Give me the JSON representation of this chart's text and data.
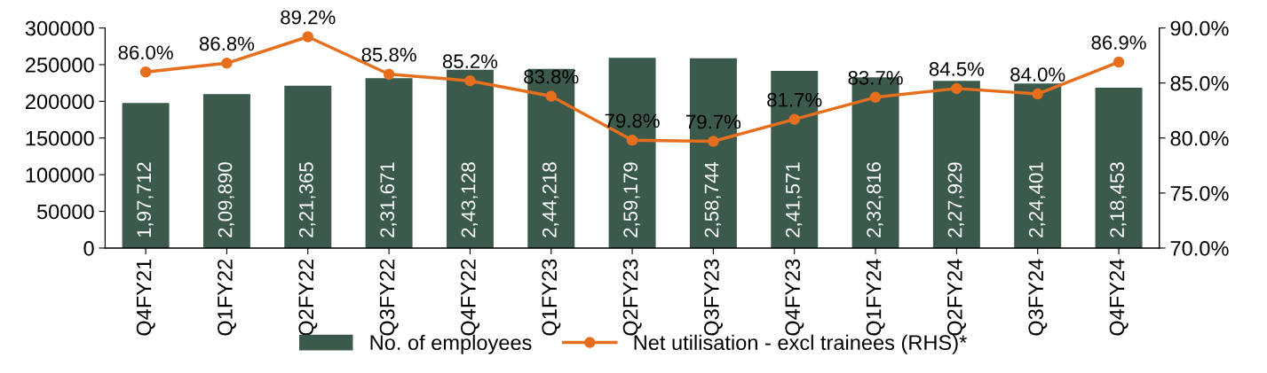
{
  "chart_data": {
    "type": "bar",
    "categories": [
      "Q4FY21",
      "Q1FY22",
      "Q2FY22",
      "Q3FY22",
      "Q4FY22",
      "Q1FY23",
      "Q2FY23",
      "Q3FY23",
      "Q4FY23",
      "Q1FY24",
      "Q2FY24",
      "Q3FY24",
      "Q4FY24"
    ],
    "series": [
      {
        "name": "No. of employees",
        "color": "#3b5a4c",
        "values": [
          197712,
          209890,
          221365,
          231671,
          243128,
          244218,
          259179,
          258744,
          241571,
          232816,
          227929,
          224401,
          218453
        ],
        "value_labels": [
          "1,97,712",
          "2,09,890",
          "2,21,365",
          "2,31,671",
          "2,43,128",
          "2,44,218",
          "2,59,179",
          "2,58,744",
          "2,41,571",
          "2,32,816",
          "2,27,929",
          "2,24,401",
          "2,18,453"
        ]
      },
      {
        "name": "Net utilisation - excl trainees (RHS)*",
        "type": "line",
        "axis": "y2",
        "color": "#e66f1e",
        "marker": "circle",
        "values": [
          86.0,
          86.8,
          89.2,
          85.8,
          85.2,
          83.8,
          79.8,
          79.7,
          81.7,
          83.7,
          84.5,
          84.0,
          86.9
        ],
        "value_labels": [
          "86.0%",
          "86.8%",
          "89.2%",
          "85.8%",
          "85.2%",
          "83.8%",
          "79.8%",
          "79.7%",
          "81.7%",
          "83.7%",
          "84.5%",
          "84.0%",
          "86.9%"
        ]
      }
    ],
    "ylim": [
      0,
      300000
    ],
    "yticks": [
      0,
      50000,
      100000,
      150000,
      200000,
      250000,
      300000
    ],
    "y2lim": [
      70,
      90
    ],
    "y2ticks": [
      {
        "value": 70,
        "label": "70.0%"
      },
      {
        "value": 75,
        "label": "75.0%"
      },
      {
        "value": 80,
        "label": "80.0%"
      },
      {
        "value": 85,
        "label": "85.0%"
      },
      {
        "value": 90,
        "label": "90.0%"
      }
    ],
    "grid": false,
    "legend": "bottom"
  }
}
